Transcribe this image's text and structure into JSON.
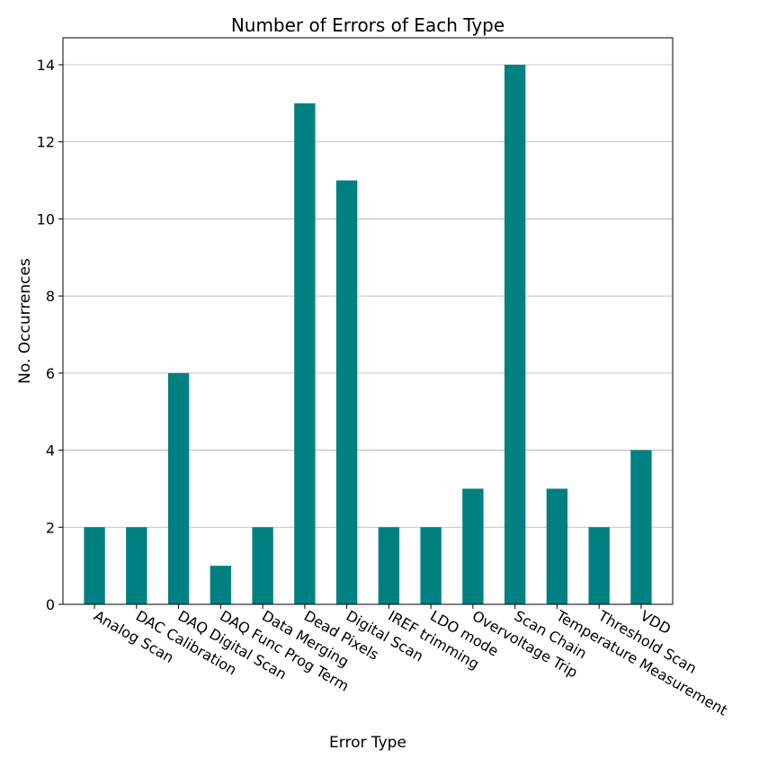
{
  "chart_data": {
    "type": "bar",
    "title": "Number of Errors of Each Type",
    "xlabel": "Error Type",
    "ylabel": "No. Occurrences",
    "categories": [
      "Analog Scan",
      "DAC Calibration",
      "DAQ Digital Scan",
      "DAQ Func Prog Term",
      "Data Merging",
      "Dead Pixels",
      "Digital Scan",
      "IREF trimming",
      "LDO mode",
      "Overvoltage Trip",
      "Scan Chain",
      "Temperature Measurement",
      "Threshold Scan",
      "VDD"
    ],
    "values": [
      2,
      2,
      6,
      1,
      2,
      13,
      11,
      2,
      2,
      3,
      14,
      3,
      2,
      4
    ],
    "ylim": [
      0,
      14.7
    ],
    "yticks": [
      0,
      2,
      4,
      6,
      8,
      10,
      12,
      14
    ],
    "grid": "horizontal",
    "colors": {
      "bar": "#008080",
      "grid": "#b0b0b0",
      "axis": "#000000"
    }
  }
}
